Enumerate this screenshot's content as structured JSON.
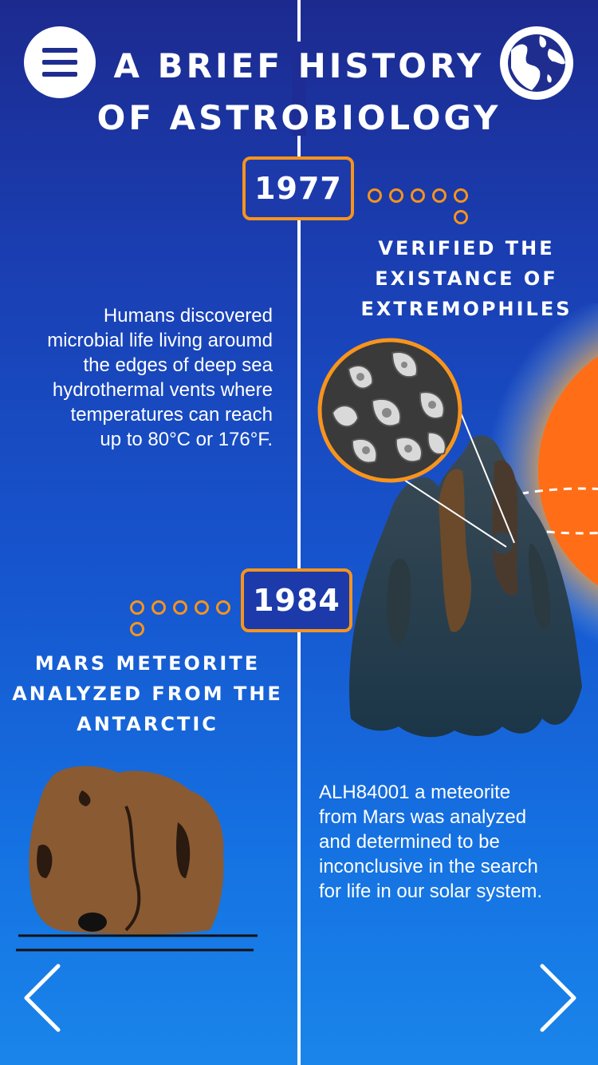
{
  "header": {
    "title": "A BRIEF HISTORY\nOF ASTROBIOLOGY",
    "menu_icon": "hamburger-menu-icon",
    "globe_icon": "globe-icon"
  },
  "events": [
    {
      "year": "1977",
      "heading": "VERIFIED THE\nEXISTANCE OF\nEXTREMOPHILES",
      "description": "Humans discovered\nmicrobial life living aroumd\nthe edges of deep sea\nhydrothermal vents where\ntemperatures can reach\nup to 80°C or 176°F."
    },
    {
      "year": "1984",
      "heading": "MARS METEORITE\nANALYZED FROM THE\nANTARCTIC",
      "description": "ALH84001 a meteorite\nfrom Mars was analyzed\nand determined to be\ninconclusive in the search\nfor life in our solar system."
    }
  ],
  "navigation": {
    "prev_icon": "chevron-left-icon",
    "next_icon": "chevron-right-icon"
  },
  "colors": {
    "accent": "#f7941d",
    "background_top": "#1c2a8f",
    "background_bottom": "#1a85ea",
    "text": "#ffffff"
  }
}
